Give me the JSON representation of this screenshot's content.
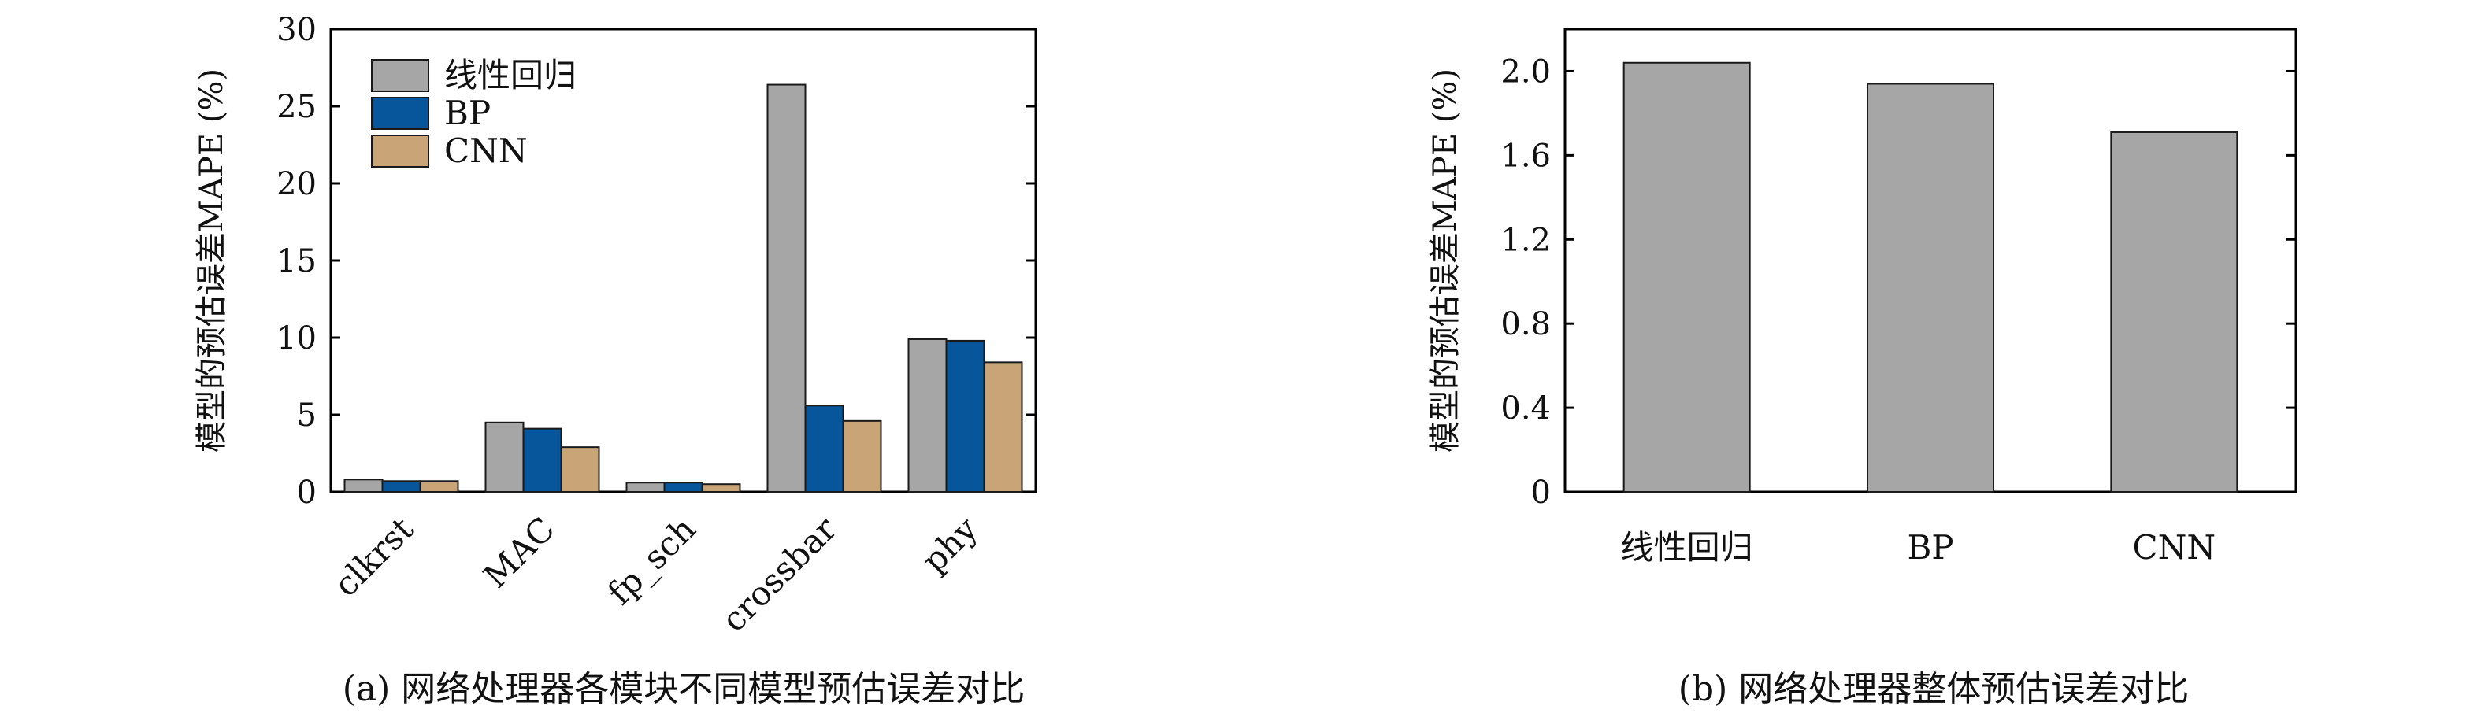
{
  "colors": {
    "linear": "#a6a6a6",
    "bp": "#07559a",
    "cnn": "#c8a477",
    "axis": "#000000"
  },
  "chart_data": [
    {
      "type": "bar",
      "caption": "(a) 网络处理器各模块不同模型预估误差对比",
      "ylabel": "模型的预估误差MAPE (%)",
      "xlabel": "",
      "categories": [
        "clkrst",
        "MAC",
        "fp_sch",
        "crossbar",
        "phy"
      ],
      "ylim": [
        0,
        30
      ],
      "yticks": [
        0,
        5,
        10,
        15,
        20,
        25,
        30
      ],
      "legend_position": "top-left",
      "series": [
        {
          "name": "线性回归",
          "color": "#a6a6a6",
          "values": [
            0.8,
            4.5,
            0.6,
            26.4,
            9.9
          ]
        },
        {
          "name": "BP",
          "color": "#07559a",
          "values": [
            0.7,
            4.1,
            0.6,
            5.6,
            9.8
          ]
        },
        {
          "name": "CNN",
          "color": "#c8a477",
          "values": [
            0.7,
            2.9,
            0.5,
            4.6,
            8.4
          ]
        }
      ]
    },
    {
      "type": "bar",
      "caption": "(b) 网络处理器整体预估误差对比",
      "ylabel": "模型的预估误差MAPE (%)",
      "xlabel": "",
      "categories": [
        "线性回归",
        "BP",
        "CNN"
      ],
      "ylim": [
        0,
        2.2
      ],
      "yticks": [
        "0",
        "0.4",
        "0.8",
        "1.2",
        "1.6",
        "2.0"
      ],
      "series": [
        {
          "color": "#a6a6a6",
          "values": [
            2.04,
            1.94,
            1.71
          ]
        }
      ]
    }
  ]
}
